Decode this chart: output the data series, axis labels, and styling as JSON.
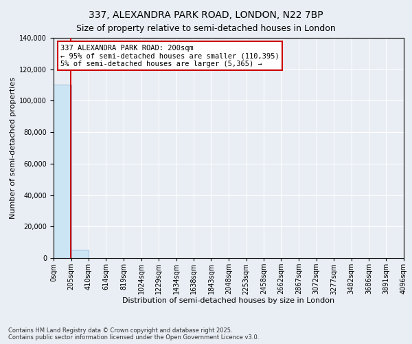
{
  "title": "337, ALEXANDRA PARK ROAD, LONDON, N22 7BP",
  "subtitle": "Size of property relative to semi-detached houses in London",
  "xlabel": "Distribution of semi-detached houses by size in London",
  "ylabel": "Number of semi-detached properties",
  "footer_line1": "Contains HM Land Registry data © Crown copyright and database right 2025.",
  "footer_line2": "Contains public sector information licensed under the Open Government Licence v3.0.",
  "annotation_title": "337 ALEXANDRA PARK ROAD: 200sqm",
  "annotation_line1": "← 95% of semi-detached houses are smaller (110,395)",
  "annotation_line2": "5% of semi-detached houses are larger (5,365) →",
  "property_size": 200,
  "bin_edges": [
    0,
    205,
    410,
    614,
    819,
    1024,
    1229,
    1434,
    1638,
    1843,
    2048,
    2253,
    2458,
    2662,
    2867,
    3072,
    3277,
    3482,
    3686,
    3891,
    4096
  ],
  "bar_heights": [
    110395,
    5365,
    200,
    80,
    40,
    20,
    15,
    10,
    8,
    6,
    5,
    4,
    3,
    3,
    2,
    2,
    1,
    1,
    1,
    1
  ],
  "bar_color": "#cce5f5",
  "bar_edge_color": "#88aacc",
  "vline_color": "#cc0000",
  "vline_x": 200,
  "annotation_box_color": "#cc0000",
  "ylim": [
    0,
    140000
  ],
  "yticks": [
    0,
    20000,
    40000,
    60000,
    80000,
    100000,
    120000,
    140000
  ],
  "background_color": "#e8eef4",
  "plot_bg_color": "#e8eef4",
  "grid_color": "#ffffff",
  "title_fontsize": 10,
  "subtitle_fontsize": 9,
  "tick_label_fontsize": 7,
  "axis_label_fontsize": 8,
  "annotation_fontsize": 7.5,
  "footer_fontsize": 6
}
